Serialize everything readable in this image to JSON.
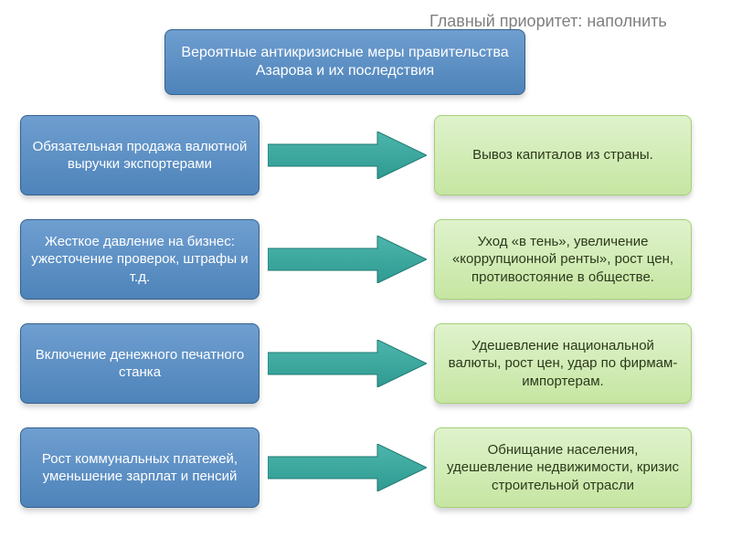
{
  "type": "flowchart",
  "background_color": "#ffffff",
  "priority": {
    "text": "Главный приоритет: наполнить бюджет",
    "color": "#7f7f7f",
    "fontsize": 18
  },
  "header": {
    "text": "Вероятные антикризисные меры правительства Азарова и их последствия",
    "bg_top": "#6f9ed0",
    "bg_bottom": "#4e84ba",
    "border": "#35628d",
    "text_color": "#ffffff",
    "fontsize": 16
  },
  "left_boxes": {
    "bg_top": "#6f9ed0",
    "bg_bottom": "#4e84ba",
    "border": "#35628d",
    "text_color": "#ffffff",
    "fontsize": 15,
    "items": [
      {
        "text": "Обязательная продажа валютной выручки экспортерами"
      },
      {
        "text": "Жесткое давление на бизнес: ужесточение проверок, штрафы и т.д."
      },
      {
        "text": "Включение  денежного печатного станка"
      },
      {
        "text": "Рост коммунальных платежей, уменьшение зарплат и пенсий"
      }
    ]
  },
  "right_boxes": {
    "bg_top": "#dff2cc",
    "bg_bottom": "#c6e6a2",
    "border": "#a5cf78",
    "text_color": "#2b3a1b",
    "fontsize": 15,
    "items": [
      {
        "text": "Вывоз капиталов из страны."
      },
      {
        "text": "Уход «в тень», увеличение «коррупционной ренты»,  рост цен, противостояние в обществе."
      },
      {
        "text": "Удешевление национальной валюты, рост цен, удар по фирмам-импортерам."
      },
      {
        "text": "Обнищание населения, удешевление недвижимости, кризис строительной отрасли"
      }
    ]
  },
  "arrow": {
    "color_top": "#4db6ac",
    "color_bottom": "#2e9a91",
    "stroke": "#1f7a72",
    "count": 4
  }
}
